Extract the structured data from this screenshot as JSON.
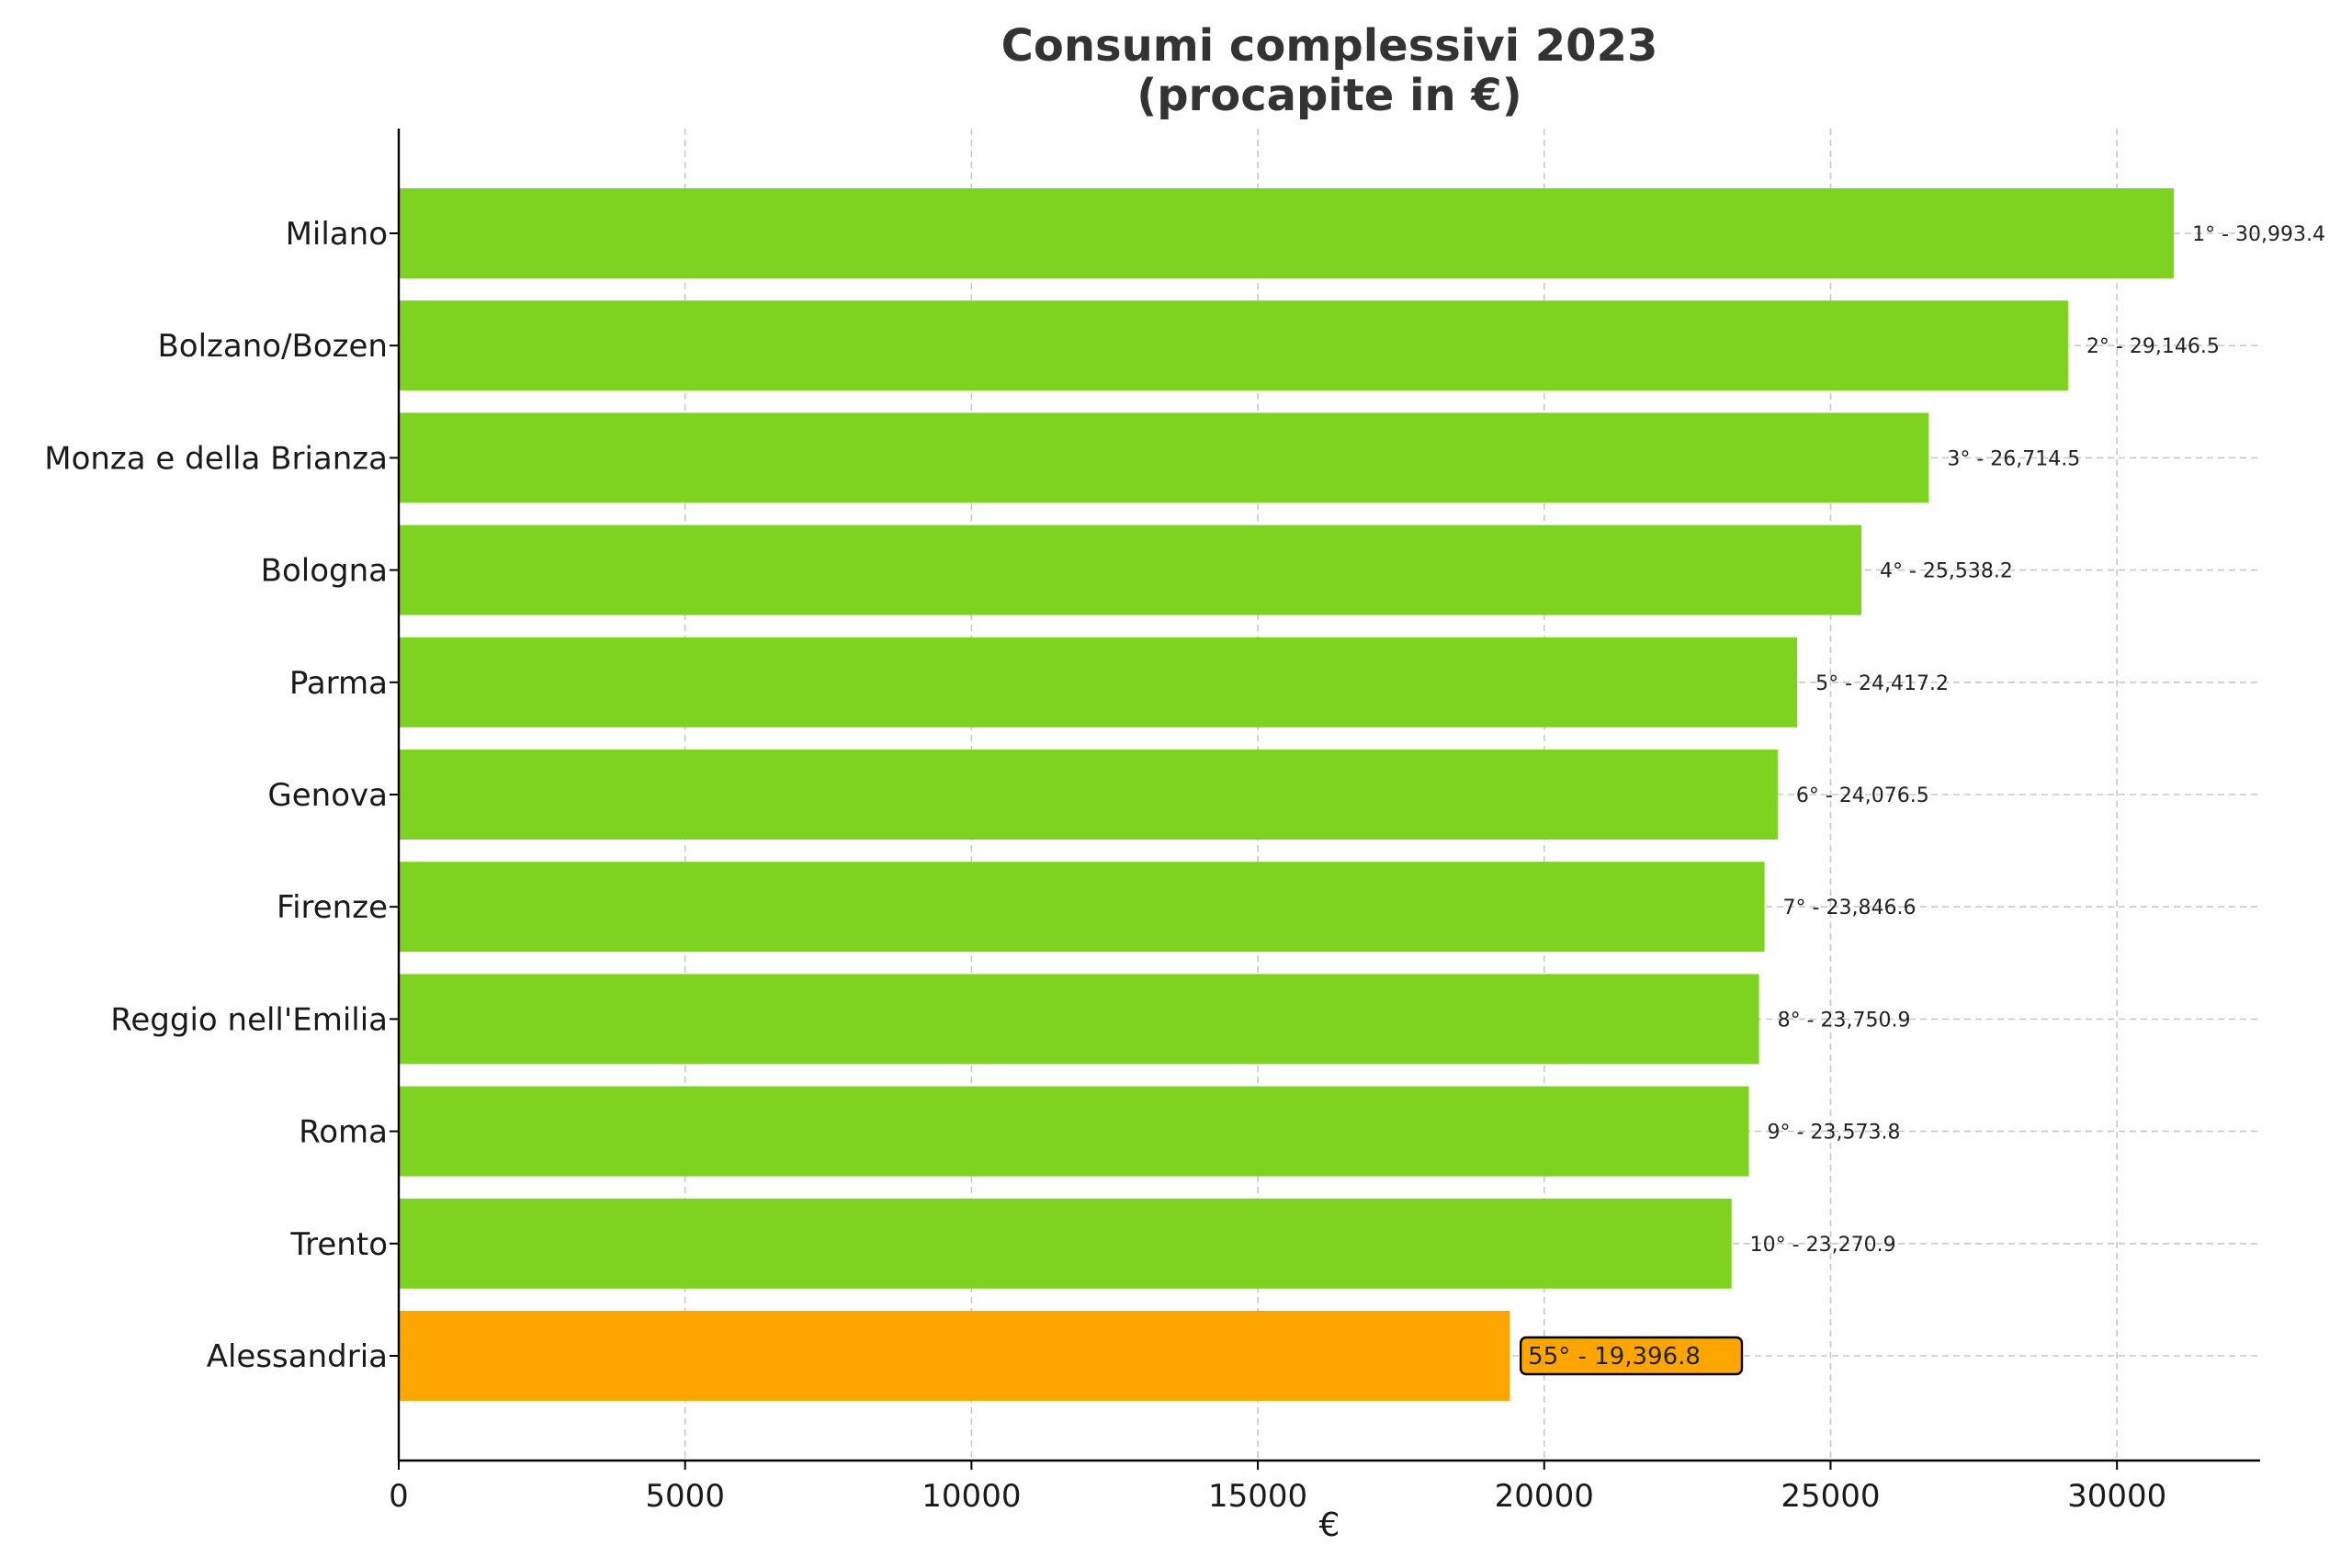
{
  "chart_data": {
    "type": "bar",
    "orientation": "horizontal",
    "title": "Consumi complessivi 2023\n(procapite in €)",
    "xlabel": "€",
    "ylabel": "",
    "xlim": [
      0,
      32500
    ],
    "xticks": [
      0,
      5000,
      10000,
      15000,
      20000,
      25000,
      30000
    ],
    "grid": true,
    "categories": [
      "Milano",
      "Bolzano/Bozen",
      "Monza e della Brianza",
      "Bologna",
      "Parma",
      "Genova",
      "Firenze",
      "Reggio nell'Emilia",
      "Roma",
      "Trento",
      "Alessandria"
    ],
    "values": [
      30993.4,
      29146.5,
      26714.5,
      25538.2,
      24417.2,
      24076.5,
      23846.6,
      23750.9,
      23573.8,
      23270.9,
      19396.8
    ],
    "labels": [
      "1° - 30,993.4",
      "2° - 29,146.5",
      "3° - 26,714.5",
      "4° - 25,538.2",
      "5° - 24,417.2",
      "6° - 24,076.5",
      "7° - 23,846.6",
      "8° - 23,750.9",
      "9° - 23,573.8",
      "10° - 23,270.9",
      "55° - 19,396.8"
    ],
    "highlight_index": 10,
    "colors": {
      "bar": "#7ED321",
      "highlight": "#FFA500",
      "label_box_fill": "#FFA500",
      "label_box_edge": "#000000"
    }
  }
}
